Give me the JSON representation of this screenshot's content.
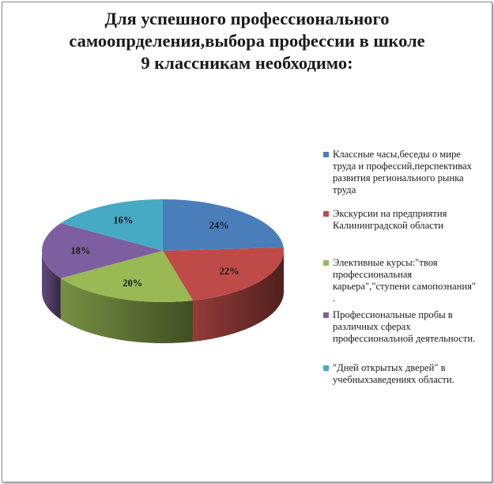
{
  "chart_data": {
    "type": "pie",
    "title": "Для успешного профессионального\nсамоопрделения,выбора профессии в школе\n9 классникам необходимо:",
    "categories": [
      "Классные часы,беседы о мире\nтруда и профессий,перспективах\nразвития регионального рынка\nтруда",
      "Экскурсии на предприятия\nКалининградской области",
      "Элективные курсы:\"твоя\nпрофессиональная\nкарьера\",\"ступени самопознания\"\n.",
      "Профессиональные пробы в\nразличных сферах\nпрофессиональной деятельности.",
      "\"Дней открытых дверей\" в\nучебныхзаведениях области."
    ],
    "values": [
      24,
      22,
      20,
      18,
      16
    ],
    "data_labels": [
      "24%",
      "22%",
      "20%",
      "18%",
      "16%"
    ],
    "colors": [
      "#4a7ebb",
      "#be4b48",
      "#98b954",
      "#7d5fa0",
      "#46aac5"
    ],
    "legend_position": "right",
    "three_d": true
  }
}
